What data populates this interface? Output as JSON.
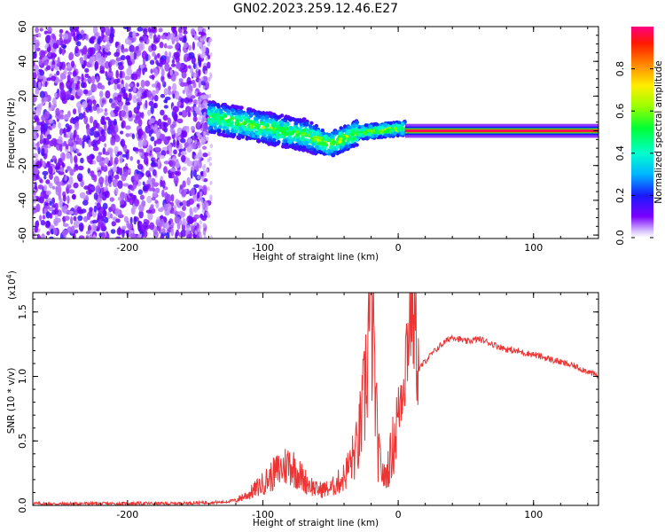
{
  "figure_title": "GN02.2023.259.12.46.E27",
  "chart_data": [
    {
      "type": "heatmap",
      "title": "",
      "xlabel": "Height of straight line (km)",
      "ylabel": "Frequency (Hz)",
      "xlim": [
        -270,
        148
      ],
      "ylim": [
        -62,
        60
      ],
      "xticks": [
        -200,
        -100,
        0,
        100
      ],
      "xtick_labels": [
        "-200",
        "-100",
        "0",
        "100"
      ],
      "yticks": [
        -60,
        -40,
        -20,
        0,
        20,
        40,
        60
      ],
      "ytick_labels": [
        "-60",
        "-40",
        "-20",
        "0",
        "20",
        "40",
        "60"
      ],
      "colorbar": {
        "label": "Normalized spectral amplitude",
        "range": [
          0,
          1
        ],
        "ticks": [
          0.0,
          0.2,
          0.4,
          0.6,
          0.8
        ],
        "tick_labels": [
          "0.0",
          "0.2",
          "0.4",
          "0.6",
          "0.8"
        ],
        "colormap": "rainbow"
      },
      "description_regions": [
        {
          "x_range": [
            -270,
            -140
          ],
          "freq_range": [
            -62,
            60
          ],
          "amplitude": [
            0.0,
            0.2
          ]
        },
        {
          "x_range": [
            -140,
            5
          ],
          "freq_center": [
            8,
            2,
            -8,
            -2
          ],
          "amplitude": [
            0.2,
            0.6
          ]
        },
        {
          "x_range": [
            5,
            148
          ],
          "freq_center": 0,
          "amplitude": 1.0
        }
      ],
      "grid": false
    },
    {
      "type": "line",
      "title": "",
      "xlabel": "Height of straight line (km)",
      "ylabel": "SNR (10 * v/v)",
      "y_multiplier_label": "(x10",
      "y_multiplier_exp": "4",
      "y_multiplier_close": ")",
      "xlim": [
        -270,
        148
      ],
      "ylim": [
        0,
        16500
      ],
      "xticks": [
        -200,
        -100,
        0,
        100
      ],
      "xtick_labels": [
        "-200",
        "-100",
        "0",
        "100"
      ],
      "yticks": [
        0,
        5000,
        10000,
        15000
      ],
      "ytick_labels": [
        "0.0",
        "0.5",
        "1.0",
        "1.5"
      ],
      "series": [
        {
          "color": "#ee3333",
          "x": [
            -270,
            -250,
            -230,
            -210,
            -190,
            -170,
            -150,
            -130,
            -120,
            -110,
            -100,
            -90,
            -80,
            -70,
            -60,
            -50,
            -40,
            -30,
            -25,
            -20,
            -15,
            -10,
            -5,
            0,
            5,
            10,
            15,
            20,
            30,
            40,
            50,
            60,
            70,
            80,
            90,
            100,
            110,
            120,
            130,
            140,
            148
          ],
          "y": [
            150,
            120,
            150,
            130,
            160,
            140,
            200,
            250,
            400,
            900,
            1700,
            2600,
            3300,
            2000,
            1200,
            1300,
            2200,
            4500,
            8200,
            16500,
            4000,
            2000,
            4000,
            7000,
            11000,
            16300,
            10500,
            11200,
            12300,
            13100,
            12700,
            12900,
            12500,
            12100,
            11900,
            11700,
            11400,
            11100,
            10800,
            10400,
            10000
          ]
        }
      ],
      "grid": false
    }
  ]
}
